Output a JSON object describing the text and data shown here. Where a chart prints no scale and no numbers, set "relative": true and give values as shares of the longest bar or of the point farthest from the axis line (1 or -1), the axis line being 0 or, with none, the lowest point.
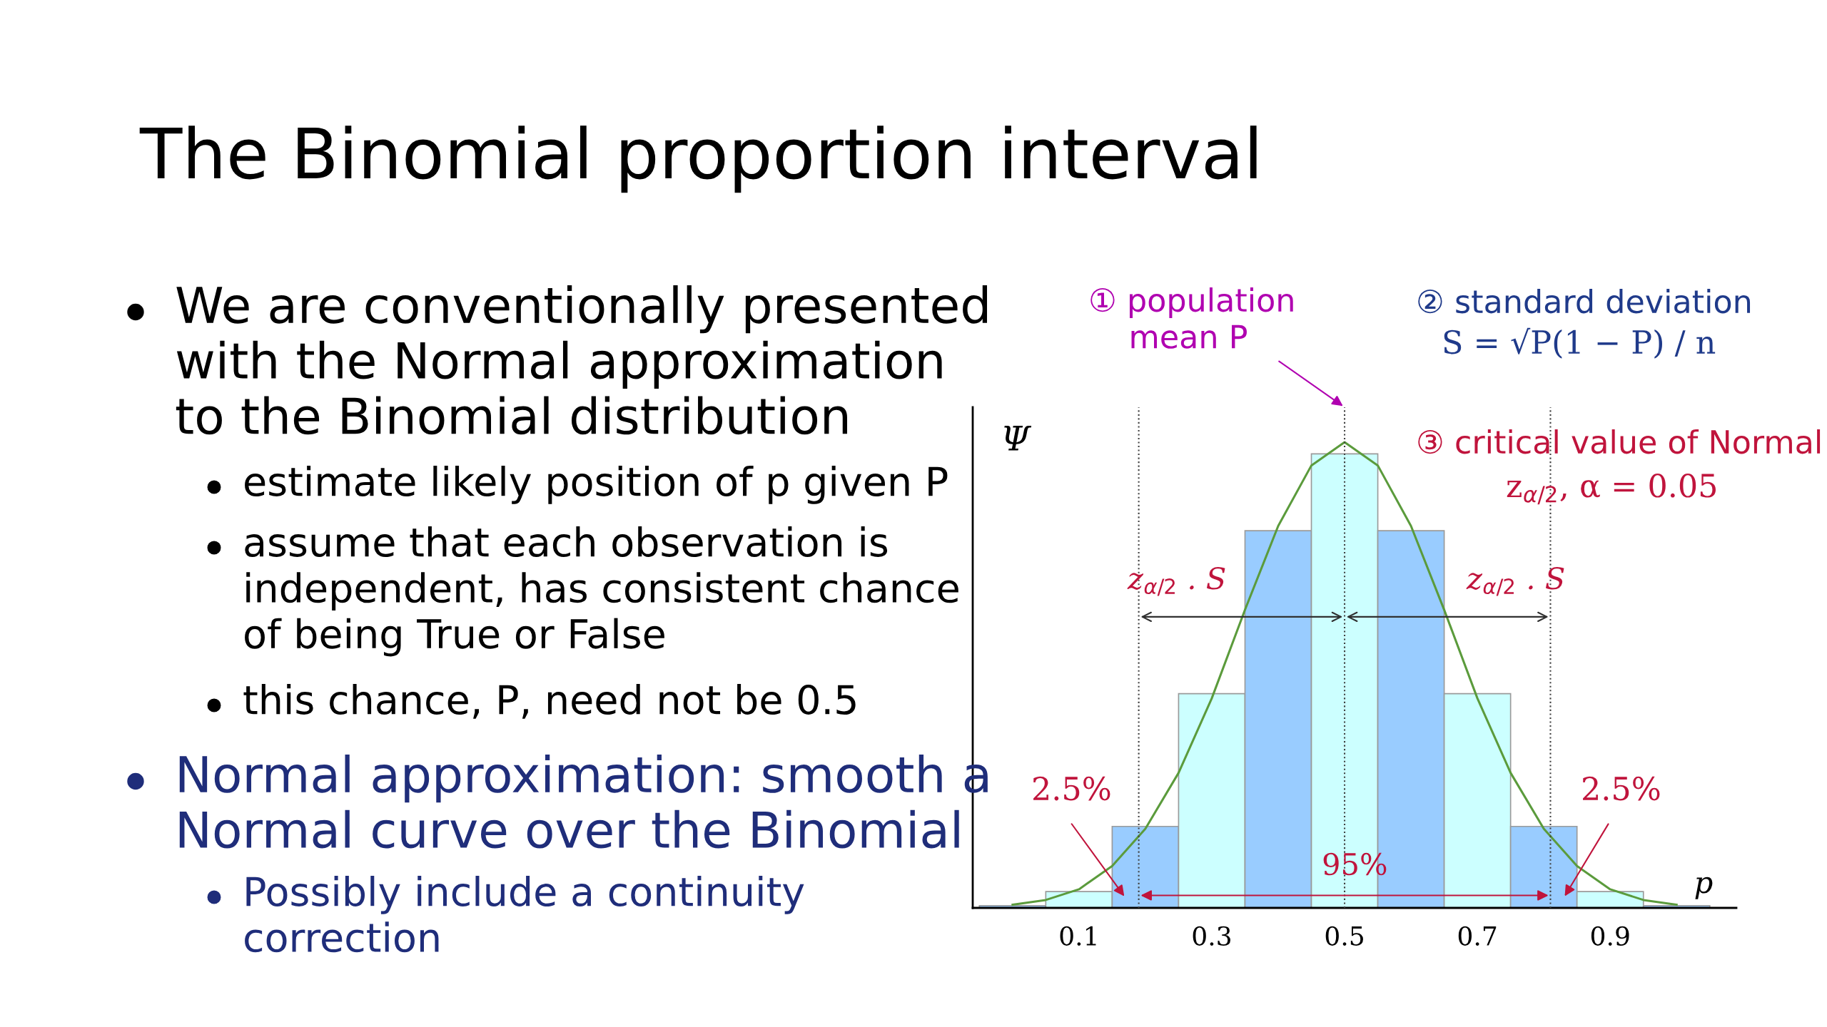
{
  "chart_data": {
    "type": "histogram",
    "title": "The Binomial proportion interval",
    "xlabel": "p",
    "ylabel": "Ψ",
    "relative": true,
    "xlim": [
      -0.06,
      1.09
    ],
    "xticks": [
      0.1,
      0.3,
      0.5,
      0.7,
      0.9
    ],
    "grid": false,
    "series": [
      {
        "bins": [
          -0.05,
          0.05,
          0.15,
          0.25,
          0.35,
          0.45,
          0.55,
          0.65,
          0.75,
          0.85,
          0.95,
          1.05
        ],
        "values": [
          0.005,
          0.035,
          0.175,
          0.46,
          0.81,
          0.975,
          0.81,
          0.46,
          0.175,
          0.035,
          0.005
        ],
        "colors": [
          "#99ccff",
          "#ccffff",
          "#99ccff",
          "#ccffff",
          "#99ccff",
          "#ccffff",
          "#99ccff",
          "#ccffff",
          "#99ccff",
          "#ccffff",
          "#99ccff"
        ]
      },
      {
        "type": "line",
        "color": "#5b9b3c",
        "x": [
          0.0,
          0.05,
          0.1,
          0.15,
          0.2,
          0.25,
          0.3,
          0.35,
          0.4,
          0.45,
          0.5,
          0.55,
          0.6,
          0.65,
          0.7,
          0.75,
          0.8,
          0.85,
          0.9,
          0.95,
          1.0
        ],
        "values": [
          0.007,
          0.017,
          0.04,
          0.09,
          0.17,
          0.29,
          0.45,
          0.64,
          0.82,
          0.95,
          1.0,
          0.95,
          0.82,
          0.64,
          0.45,
          0.29,
          0.17,
          0.09,
          0.04,
          0.017,
          0.007
        ]
      }
    ],
    "ref_lines": [
      {
        "axis": "x",
        "value": 0.19,
        "color": "#404040",
        "line_style": "dotted"
      },
      {
        "axis": "x",
        "value": 0.5,
        "color": "#404040",
        "line_style": "dotted"
      },
      {
        "axis": "x",
        "value": 0.81,
        "color": "#404040",
        "line_style": "dotted"
      }
    ],
    "annotations": [
      "We are conventionally presented\nwith the Normal approximation\nto the Binomial distribution",
      "estimate likely position of p given P",
      "assume that each observation is\nindependent, has consistent chance\nof being True or False",
      "this chance, P, need not be 0.5",
      "Normal approximation: smooth a\nNormal curve over the Binomial",
      "Possibly include a continuity\ncorrection",
      "① population\n    mean P",
      "② standard deviation",
      "S = √P(1 − P) / n",
      "③ critical value of Normal",
      "z$_{α/2}$, α = 0.05",
      "z$_{α/2}$ . S",
      "z$_{α/2}$ . S",
      "2.5%",
      "2.5%",
      "95%"
    ]
  }
}
